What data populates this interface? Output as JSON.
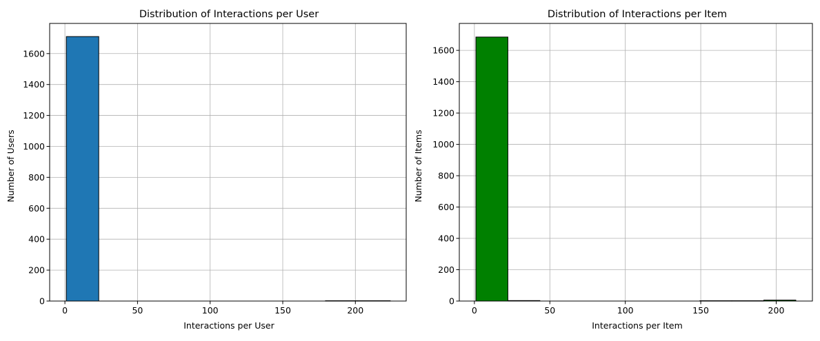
{
  "chart_data": [
    {
      "type": "bar",
      "title": "Distribution of Interactions per User",
      "xlabel": "Interactions per User",
      "ylabel": "Number of Users",
      "bar_color": "#1f77b4",
      "edge_color": "#000000",
      "grid": true,
      "xlim": [
        -10.5,
        235
      ],
      "ylim": [
        0,
        1795
      ],
      "xticks": [
        0,
        50,
        100,
        150,
        200
      ],
      "yticks": [
        0,
        200,
        400,
        600,
        800,
        1000,
        1200,
        1400,
        1600
      ],
      "bins": [
        {
          "x0": 1.0,
          "x1": 23.3,
          "value": 1710
        },
        {
          "x0": 23.3,
          "x1": 45.6,
          "value": 0
        },
        {
          "x0": 45.6,
          "x1": 67.9,
          "value": 0
        },
        {
          "x0": 67.9,
          "x1": 90.2,
          "value": 0
        },
        {
          "x0": 90.2,
          "x1": 112.5,
          "value": 0
        },
        {
          "x0": 112.5,
          "x1": 134.8,
          "value": 0
        },
        {
          "x0": 134.8,
          "x1": 157.1,
          "value": 0
        },
        {
          "x0": 157.1,
          "x1": 179.4,
          "value": 0
        },
        {
          "x0": 179.4,
          "x1": 201.7,
          "value": 2
        },
        {
          "x0": 201.7,
          "x1": 224.0,
          "value": 2
        }
      ]
    },
    {
      "type": "bar",
      "title": "Distribution of Interactions per Item",
      "xlabel": "Interactions per Item",
      "ylabel": "Number of Items",
      "bar_color": "#008000",
      "edge_color": "#000000",
      "grid": true,
      "xlim": [
        -10,
        224
      ],
      "ylim": [
        0,
        1772
      ],
      "xticks": [
        0,
        50,
        100,
        150,
        200
      ],
      "yticks": [
        0,
        200,
        400,
        600,
        800,
        1000,
        1200,
        1400,
        1600
      ],
      "bins": [
        {
          "x0": 1.0,
          "x1": 22.2,
          "value": 1685
        },
        {
          "x0": 22.2,
          "x1": 43.4,
          "value": 3
        },
        {
          "x0": 43.4,
          "x1": 64.6,
          "value": 0
        },
        {
          "x0": 64.6,
          "x1": 85.8,
          "value": 0
        },
        {
          "x0": 85.8,
          "x1": 107.0,
          "value": 0
        },
        {
          "x0": 107.0,
          "x1": 128.2,
          "value": 0
        },
        {
          "x0": 128.2,
          "x1": 149.4,
          "value": 0
        },
        {
          "x0": 149.4,
          "x1": 170.6,
          "value": 2
        },
        {
          "x0": 170.6,
          "x1": 191.8,
          "value": 2
        },
        {
          "x0": 191.8,
          "x1": 213.0,
          "value": 6
        }
      ]
    }
  ]
}
